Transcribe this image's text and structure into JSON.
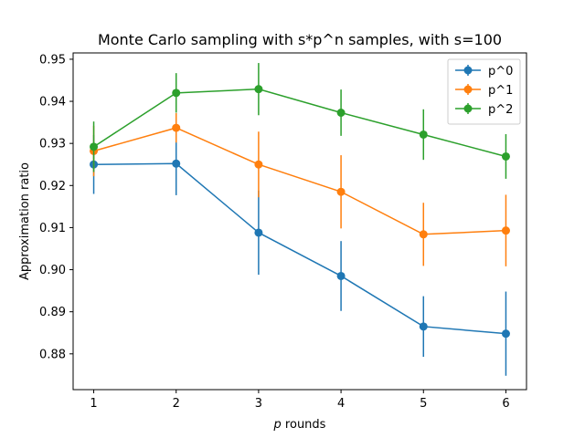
{
  "chart_data": {
    "type": "line",
    "title": "Monte Carlo sampling with s*p^n samples, with s=100",
    "xlabel_italic": "p",
    "xlabel_rest": " rounds",
    "ylabel": "Approximation ratio",
    "x": [
      1,
      2,
      3,
      4,
      5,
      6
    ],
    "xticks": [
      "1",
      "2",
      "3",
      "4",
      "5",
      "6"
    ],
    "xlim": [
      0.75,
      6.25
    ],
    "ylim": [
      0.8715,
      0.9515
    ],
    "yticks": [
      "0.88",
      "0.89",
      "0.90",
      "0.91",
      "0.92",
      "0.93",
      "0.94",
      "0.95"
    ],
    "ytick_values": [
      0.88,
      0.89,
      0.9,
      0.91,
      0.92,
      0.93,
      0.94,
      0.95
    ],
    "legend_position": "top-right",
    "grid": false,
    "series": [
      {
        "name": "p^0",
        "color": "#1f77b4",
        "values": [
          0.925,
          0.9252,
          0.9088,
          0.8985,
          0.8865,
          0.8848
        ],
        "errors": [
          0.007,
          0.0075,
          0.01,
          0.0083,
          0.0072,
          0.01
        ]
      },
      {
        "name": "p^1",
        "color": "#ff7f0e",
        "values": [
          0.9282,
          0.9337,
          0.925,
          0.9185,
          0.9084,
          0.9093
        ],
        "errors": [
          0.006,
          0.0035,
          0.0078,
          0.0087,
          0.0075,
          0.0085
        ]
      },
      {
        "name": "p^2",
        "color": "#2ca02c",
        "values": [
          0.9292,
          0.942,
          0.9429,
          0.9373,
          0.9321,
          0.9269
        ],
        "errors": [
          0.006,
          0.0047,
          0.0062,
          0.0055,
          0.006,
          0.0053
        ]
      }
    ]
  }
}
